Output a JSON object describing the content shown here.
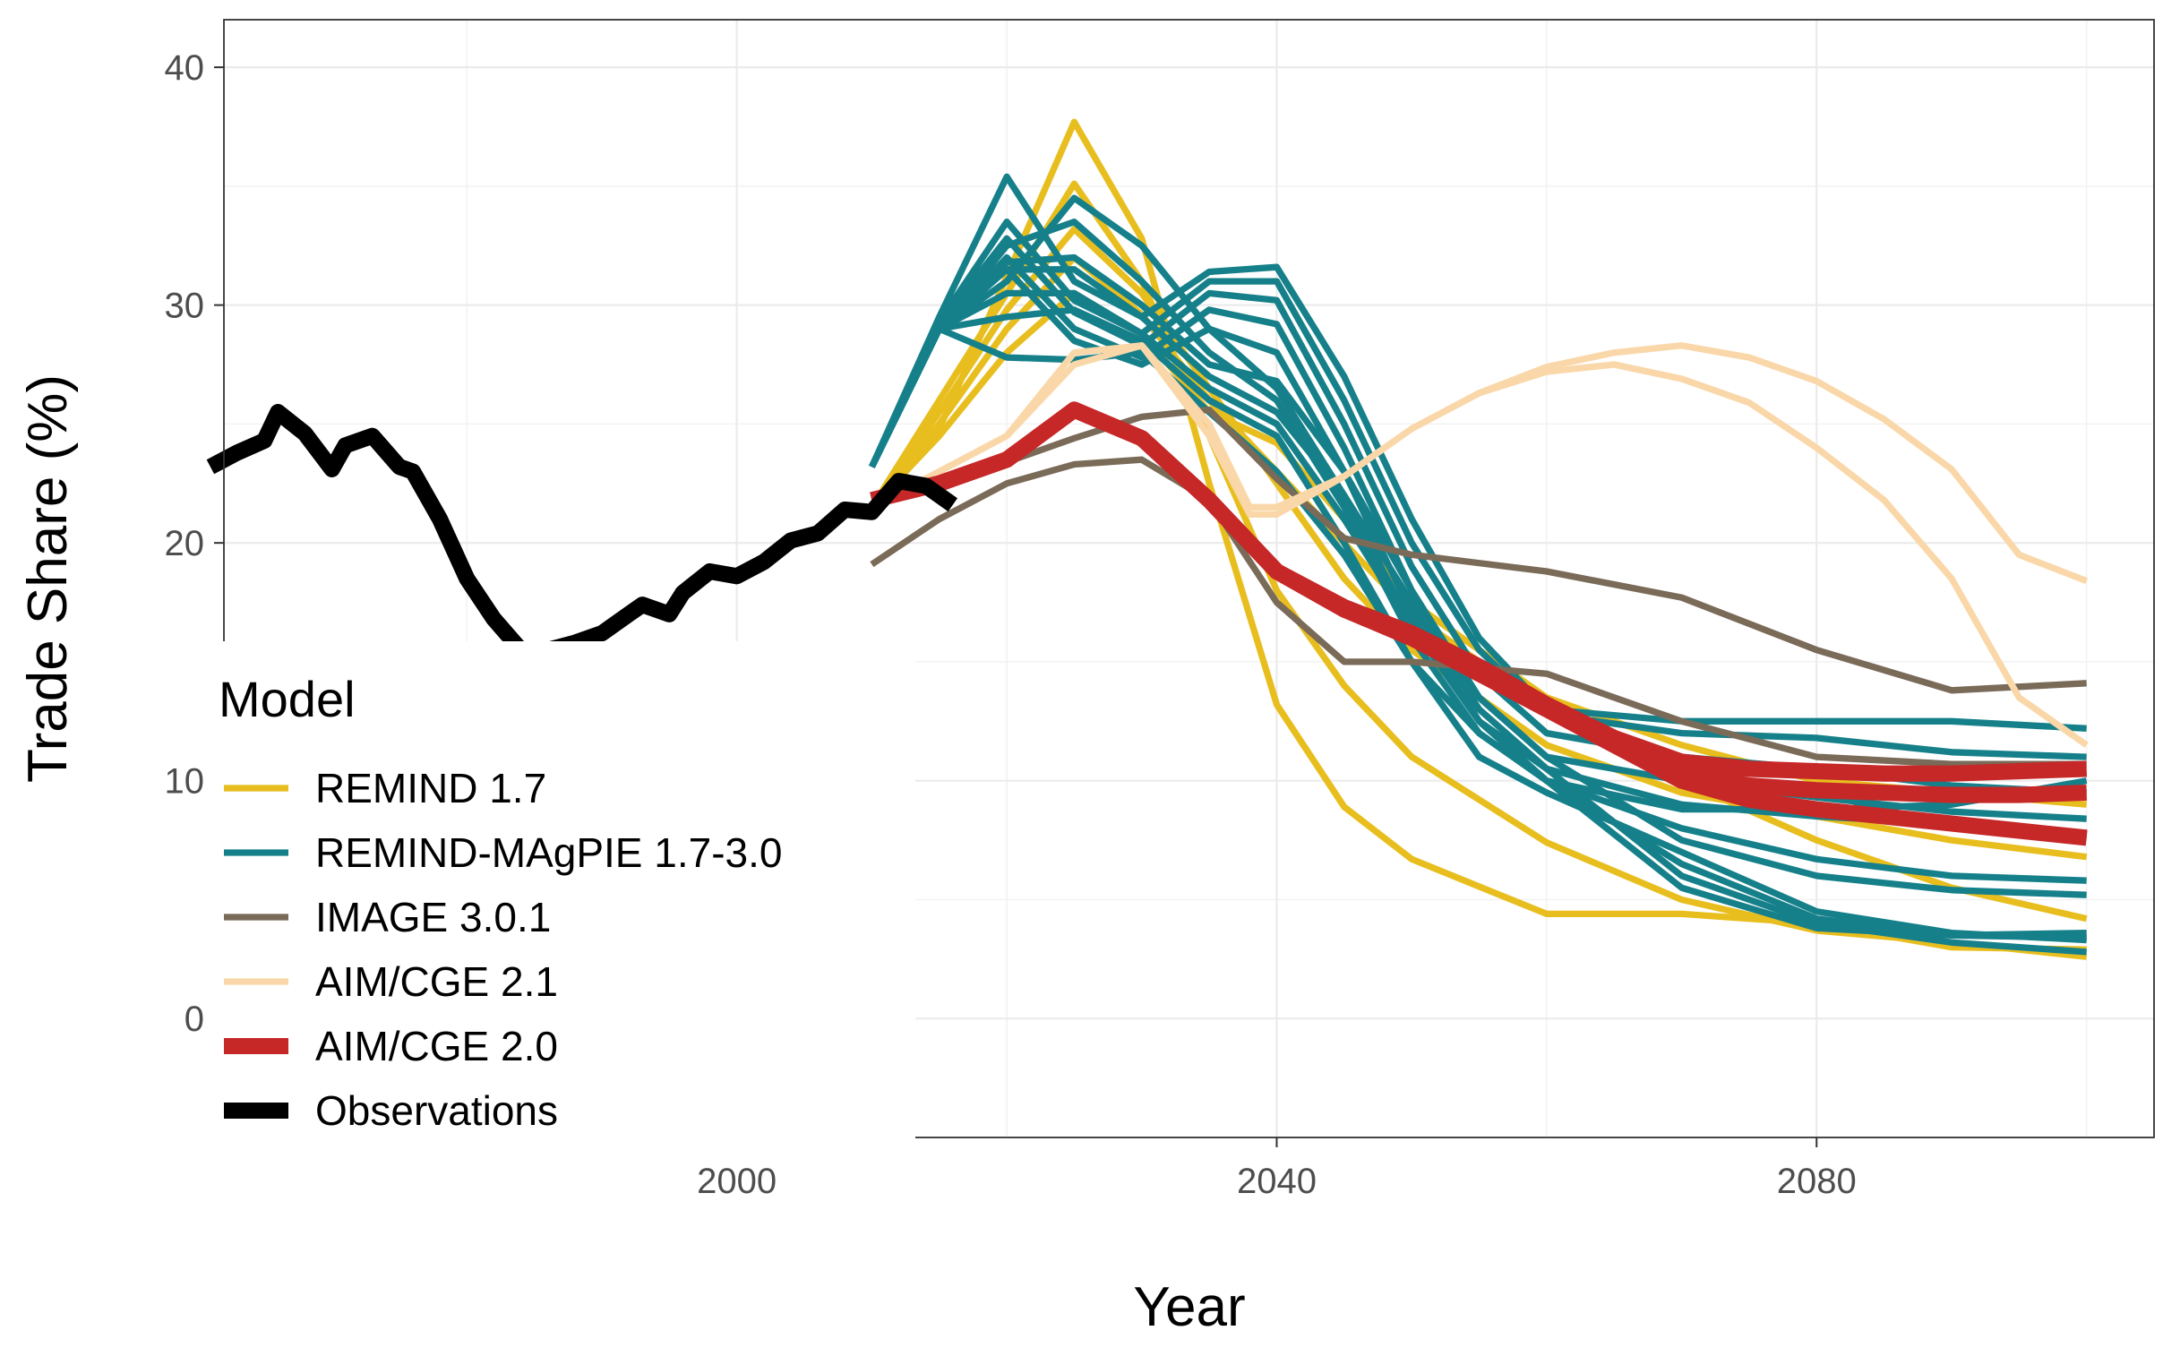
{
  "chart_data": {
    "type": "line",
    "xlabel": "Year",
    "ylabel": "Trade Share (%)",
    "xlim": [
      1962,
      2105
    ],
    "ylim": [
      -5,
      42
    ],
    "x_ticks": [
      2000,
      2040,
      2080
    ],
    "x_tick_labels": [
      "2000",
      "2040",
      "2080"
    ],
    "y_ticks": [
      0,
      10,
      20,
      30,
      40
    ],
    "y_tick_labels": [
      "0",
      "10",
      "20",
      "30",
      "40"
    ],
    "grid": true,
    "legend": {
      "title": "Model",
      "placement": "inside-bottom-left",
      "entries": [
        "REMIND 1.7",
        "REMIND-MAgPIE 1.7-3.0",
        "IMAGE 3.0.1",
        "AIM/CGE 2.1",
        "AIM/CGE 2.0",
        "Observations"
      ]
    },
    "colors": {
      "REMIND 1.7": "#E8BE1E",
      "REMIND-MAgPIE 1.7-3.0": "#16808A",
      "IMAGE 3.0.1": "#7A6A58",
      "AIM/CGE 2.1": "#FAD7A8",
      "AIM/CGE 2.0": "#C62828",
      "Observations": "#000000"
    },
    "line_widths": {
      "REMIND 1.7": 2.2,
      "REMIND-MAgPIE 1.7-3.0": 2.2,
      "IMAGE 3.0.1": 2.2,
      "AIM/CGE 2.1": 2.2,
      "AIM/CGE 2.0": 5.5,
      "Observations": 5.5
    },
    "series": [
      {
        "name": "Observations",
        "x": [
          1961,
          1963,
          1965,
          1966,
          1968,
          1970,
          1971,
          1973,
          1975,
          1976,
          1978,
          1980,
          1982,
          1984,
          1986,
          1988,
          1990,
          1992,
          1993,
          1995,
          1996,
          1998,
          2000,
          2002,
          2004,
          2006,
          2008,
          2010,
          2012,
          2014,
          2016
        ],
        "values": [
          23.2,
          23.8,
          24.3,
          25.5,
          24.6,
          23.1,
          24.1,
          24.5,
          23.2,
          23.0,
          21.0,
          18.5,
          16.8,
          15.5,
          15.5,
          15.8,
          16.2,
          17.0,
          17.4,
          17.0,
          17.9,
          18.8,
          18.6,
          19.2,
          20.1,
          20.4,
          21.4,
          21.3,
          22.6,
          22.4,
          21.6
        ]
      },
      {
        "name": "REMIND 1.7",
        "x": [
          2010,
          2015,
          2020,
          2025,
          2030,
          2035,
          2040,
          2045,
          2050,
          2060,
          2070,
          2080,
          2090,
          2100
        ],
        "values": [
          21.5,
          24.8,
          31.2,
          37.7,
          32.8,
          22.5,
          13.2,
          8.9,
          6.7,
          4.4,
          4.4,
          4.0,
          3.0,
          2.9
        ]
      },
      {
        "name": "REMIND 1.7",
        "x": [
          2010,
          2015,
          2020,
          2025,
          2030,
          2035,
          2040,
          2045,
          2050,
          2060,
          2070,
          2080,
          2090,
          2100
        ],
        "values": [
          21.5,
          26.0,
          30.5,
          35.1,
          31.0,
          24.5,
          18.0,
          14.0,
          11.0,
          7.4,
          5.0,
          3.7,
          3.2,
          2.6
        ]
      },
      {
        "name": "REMIND 1.7",
        "x": [
          2010,
          2015,
          2020,
          2025,
          2030,
          2035,
          2040,
          2045,
          2050,
          2060,
          2070,
          2080,
          2090,
          2100
        ],
        "values": [
          21.5,
          25.5,
          29.8,
          33.2,
          30.5,
          26.5,
          22.5,
          18.5,
          15.5,
          11.5,
          9.5,
          8.5,
          7.5,
          6.8
        ]
      },
      {
        "name": "REMIND 1.7",
        "x": [
          2010,
          2015,
          2020,
          2025,
          2030,
          2035,
          2040,
          2045,
          2050,
          2060,
          2070,
          2080,
          2090,
          2100
        ],
        "values": [
          21.5,
          25.0,
          29.0,
          32.0,
          29.6,
          26.0,
          23.0,
          20.0,
          17.0,
          13.0,
          10.0,
          7.5,
          5.5,
          4.2
        ]
      },
      {
        "name": "REMIND 1.7",
        "x": [
          2010,
          2015,
          2020,
          2025,
          2030,
          2035,
          2040,
          2045,
          2050,
          2060,
          2070,
          2080,
          2090,
          2100
        ],
        "values": [
          21.5,
          24.5,
          28.0,
          30.5,
          28.8,
          25.5,
          24.2,
          21.0,
          17.5,
          13.5,
          11.5,
          10.0,
          9.5,
          9.0
        ]
      },
      {
        "name": "REMIND-MAgPIE 1.7-3.0",
        "x": [
          2010,
          2015,
          2020,
          2025,
          2030,
          2035,
          2040,
          2045,
          2050,
          2055,
          2060,
          2070,
          2080,
          2090,
          2100
        ],
        "values": [
          23.2,
          29.5,
          35.4,
          31.0,
          29.5,
          31.4,
          31.6,
          27.0,
          21.0,
          16.0,
          13.0,
          12.5,
          12.5,
          12.5,
          12.2
        ]
      },
      {
        "name": "REMIND-MAgPIE 1.7-3.0",
        "x": [
          2010,
          2015,
          2020,
          2025,
          2030,
          2035,
          2040,
          2045,
          2050,
          2055,
          2060,
          2070,
          2080,
          2090,
          2100
        ],
        "values": [
          23.2,
          29.3,
          33.5,
          30.2,
          28.8,
          31.0,
          31.0,
          26.0,
          20.0,
          15.5,
          12.8,
          12.0,
          11.8,
          11.2,
          11.0
        ]
      },
      {
        "name": "REMIND-MAgPIE 1.7-3.0",
        "x": [
          2010,
          2015,
          2020,
          2025,
          2030,
          2035,
          2040,
          2045,
          2050,
          2055,
          2060,
          2070,
          2080,
          2090,
          2100
        ],
        "values": [
          23.2,
          29.2,
          32.8,
          29.7,
          28.3,
          30.5,
          30.2,
          25.0,
          19.0,
          14.5,
          12.0,
          11.0,
          10.5,
          9.8,
          9.5
        ]
      },
      {
        "name": "REMIND-MAgPIE 1.7-3.0",
        "x": [
          2010,
          2015,
          2020,
          2025,
          2030,
          2035,
          2040,
          2045,
          2050,
          2055,
          2060,
          2070,
          2080,
          2090,
          2100
        ],
        "values": [
          23.2,
          29.0,
          32.0,
          29.0,
          27.8,
          29.8,
          29.2,
          24.0,
          18.0,
          13.5,
          11.0,
          10.0,
          9.3,
          8.7,
          8.4
        ]
      },
      {
        "name": "REMIND-MAgPIE 1.7-3.0",
        "x": [
          2010,
          2015,
          2020,
          2025,
          2030,
          2035,
          2040,
          2045,
          2050,
          2055,
          2060,
          2070,
          2080,
          2090,
          2100
        ],
        "values": [
          23.2,
          29.0,
          31.5,
          28.5,
          27.5,
          29.0,
          28.0,
          23.0,
          17.0,
          12.5,
          10.0,
          6.5,
          4.2,
          3.5,
          3.6
        ]
      },
      {
        "name": "REMIND-MAgPIE 1.7-3.0",
        "x": [
          2010,
          2015,
          2020,
          2025,
          2030,
          2035,
          2040,
          2045,
          2050,
          2055,
          2060,
          2070,
          2080,
          2090,
          2100
        ],
        "values": [
          23.2,
          29.0,
          31.0,
          34.5,
          32.5,
          29.0,
          26.5,
          22.0,
          16.5,
          12.5,
          10.5,
          6.0,
          4.0,
          3.2,
          2.8
        ]
      },
      {
        "name": "REMIND-MAgPIE 1.7-3.0",
        "x": [
          2010,
          2015,
          2020,
          2025,
          2030,
          2035,
          2040,
          2045,
          2050,
          2055,
          2060,
          2070,
          2080,
          2090,
          2100
        ],
        "values": [
          23.2,
          29.0,
          32.5,
          33.5,
          31.0,
          28.0,
          26.0,
          21.5,
          16.0,
          12.0,
          10.0,
          5.5,
          3.8,
          3.5,
          3.4
        ]
      },
      {
        "name": "REMIND-MAgPIE 1.7-3.0",
        "x": [
          2010,
          2015,
          2020,
          2025,
          2030,
          2035,
          2040,
          2045,
          2050,
          2055,
          2060,
          2070,
          2080,
          2090,
          2100
        ],
        "values": [
          23.2,
          29.0,
          31.8,
          32.0,
          30.0,
          27.5,
          26.8,
          23.0,
          18.0,
          13.5,
          11.0,
          7.5,
          6.0,
          5.4,
          5.2
        ]
      },
      {
        "name": "REMIND-MAgPIE 1.7-3.0",
        "x": [
          2010,
          2015,
          2020,
          2025,
          2030,
          2035,
          2040,
          2045,
          2050,
          2055,
          2060,
          2070,
          2080,
          2090,
          2100
        ],
        "values": [
          23.2,
          29.0,
          31.5,
          31.5,
          29.5,
          27.0,
          25.5,
          22.0,
          17.5,
          13.0,
          10.5,
          9.0,
          8.5,
          8.2,
          7.6
        ]
      },
      {
        "name": "REMIND-MAgPIE 1.7-3.0",
        "x": [
          2010,
          2015,
          2020,
          2025,
          2030,
          2035,
          2040,
          2045,
          2050,
          2055,
          2060,
          2070,
          2080,
          2090,
          2100
        ],
        "values": [
          23.2,
          29.0,
          30.5,
          30.5,
          28.8,
          26.5,
          25.0,
          21.0,
          16.5,
          12.5,
          10.0,
          8.0,
          6.7,
          6.0,
          5.8
        ]
      },
      {
        "name": "REMIND-MAgPIE 1.7-3.0",
        "x": [
          2010,
          2015,
          2020,
          2025,
          2030,
          2035,
          2040,
          2045,
          2050,
          2055,
          2060,
          2070,
          2080,
          2090,
          2100
        ],
        "values": [
          23.2,
          29.0,
          29.5,
          29.8,
          28.5,
          26.0,
          24.5,
          20.0,
          15.0,
          11.0,
          9.5,
          7.0,
          4.5,
          3.6,
          3.3
        ]
      },
      {
        "name": "REMIND-MAgPIE 1.7-3.0",
        "x": [
          2010,
          2015,
          2020,
          2025,
          2030,
          2035,
          2040,
          2045,
          2050,
          2055,
          2060,
          2070,
          2080,
          2090,
          2100
        ],
        "values": [
          23.2,
          29.0,
          27.8,
          27.7,
          28.0,
          25.5,
          23.0,
          19.5,
          15.0,
          12.0,
          10.0,
          8.8,
          8.8,
          9.0,
          10.0
        ]
      },
      {
        "name": "IMAGE 3.0.1",
        "x": [
          2010,
          2015,
          2020,
          2025,
          2030,
          2035,
          2040,
          2045,
          2050,
          2060,
          2070,
          2080,
          2090,
          2100
        ],
        "values": [
          19.1,
          21.0,
          22.5,
          23.3,
          23.5,
          21.8,
          17.5,
          15.0,
          15.0,
          14.5,
          12.5,
          11.0,
          10.7,
          10.7
        ]
      },
      {
        "name": "IMAGE 3.0.1",
        "x": [
          2010,
          2015,
          2020,
          2025,
          2030,
          2035,
          2040,
          2045,
          2050,
          2060,
          2070,
          2080,
          2090,
          2100
        ],
        "values": [
          21.8,
          22.7,
          23.4,
          24.4,
          25.3,
          25.6,
          22.7,
          20.2,
          19.5,
          18.8,
          17.7,
          15.5,
          13.8,
          14.1
        ]
      },
      {
        "name": "AIM/CGE 2.1",
        "x": [
          2010,
          2015,
          2020,
          2025,
          2030,
          2035,
          2038,
          2040,
          2045,
          2050,
          2055,
          2060,
          2065,
          2070,
          2075,
          2080,
          2085,
          2090,
          2095,
          2100
        ],
        "values": [
          21.5,
          23.0,
          24.5,
          27.5,
          28.3,
          24.5,
          21.2,
          21.2,
          22.8,
          24.8,
          26.3,
          27.2,
          27.5,
          26.9,
          25.9,
          24.0,
          21.8,
          18.5,
          13.5,
          11.5
        ]
      },
      {
        "name": "AIM/CGE 2.1",
        "x": [
          2010,
          2015,
          2020,
          2025,
          2030,
          2035,
          2038,
          2040,
          2045,
          2050,
          2055,
          2060,
          2065,
          2070,
          2075,
          2080,
          2085,
          2090,
          2095,
          2100
        ],
        "values": [
          21.5,
          23.0,
          24.5,
          28.0,
          28.3,
          25.0,
          21.5,
          21.5,
          22.8,
          24.8,
          26.3,
          27.4,
          28.0,
          28.3,
          27.8,
          26.8,
          25.2,
          23.1,
          19.5,
          18.4
        ]
      },
      {
        "name": "AIM/CGE 2.0",
        "x": [
          2010,
          2015,
          2020,
          2025,
          2030,
          2035,
          2040,
          2045,
          2050,
          2055,
          2060,
          2065,
          2070,
          2075,
          2080,
          2085,
          2090,
          2095,
          2100
        ],
        "values": [
          21.8,
          22.5,
          23.5,
          25.6,
          24.4,
          21.8,
          18.8,
          17.2,
          16.0,
          14.5,
          13.0,
          11.5,
          10.0,
          9.2,
          8.8,
          8.5,
          8.2,
          7.9,
          7.6
        ]
      },
      {
        "name": "AIM/CGE 2.0",
        "x": [
          2010,
          2015,
          2020,
          2025,
          2030,
          2035,
          2040,
          2045,
          2050,
          2055,
          2060,
          2065,
          2070,
          2075,
          2080,
          2085,
          2090,
          2095,
          2100
        ],
        "values": [
          21.8,
          22.5,
          23.5,
          25.6,
          24.4,
          21.8,
          18.8,
          17.3,
          16.2,
          14.8,
          13.2,
          11.8,
          10.8,
          10.5,
          10.4,
          10.3,
          10.3,
          10.4,
          10.5
        ]
      },
      {
        "name": "AIM/CGE 2.0",
        "x": [
          2010,
          2015,
          2020,
          2025,
          2030,
          2035,
          2040,
          2045,
          2050,
          2055,
          2060,
          2065,
          2070,
          2075,
          2080,
          2085,
          2090,
          2095,
          2100
        ],
        "values": [
          21.8,
          22.5,
          23.5,
          25.6,
          24.4,
          21.8,
          18.8,
          17.2,
          16.1,
          14.6,
          13.1,
          11.6,
          10.3,
          9.8,
          9.6,
          9.5,
          9.4,
          9.4,
          9.5
        ]
      }
    ]
  }
}
